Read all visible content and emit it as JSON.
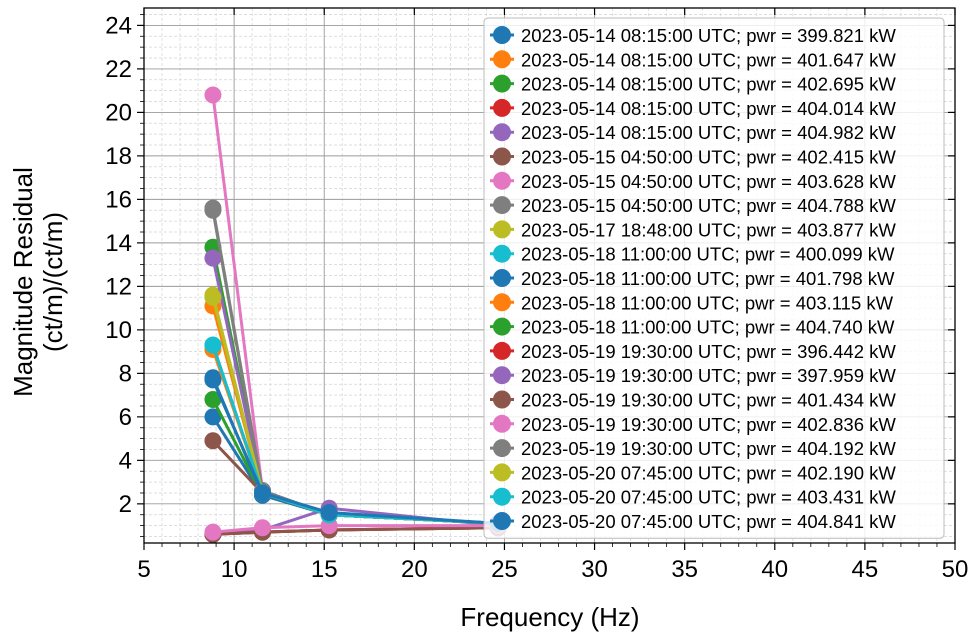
{
  "chart_data": {
    "type": "line",
    "title": "",
    "xlabel": "Frequency (Hz)",
    "ylabel_line1": "Magnitude Residual",
    "ylabel_line2": "(ct/m)/(ct/m)",
    "xlim": [
      5,
      50
    ],
    "ylim": [
      0.2,
      24.8
    ],
    "xticks": [
      5,
      10,
      15,
      20,
      25,
      30,
      35,
      40,
      45,
      50
    ],
    "yticks": [
      2,
      4,
      6,
      8,
      10,
      12,
      14,
      16,
      18,
      20,
      22,
      24
    ],
    "grid": true,
    "legend_position": "upper-right",
    "x": [
      8.825,
      11.575,
      15.275,
      24.65
    ],
    "series": [
      {
        "name": "2023-05-14 08:15:00 UTC; pwr = 399.821 kW",
        "color": "#1f77b4",
        "values": [
          6.0,
          2.4,
          1.5,
          1.1
        ]
      },
      {
        "name": "2023-05-14 08:15:00 UTC; pwr = 401.647 kW",
        "color": "#ff7f0e",
        "values": [
          11.1,
          2.5,
          1.5,
          1.1
        ]
      },
      {
        "name": "2023-05-14 08:15:00 UTC; pwr = 402.695 kW",
        "color": "#2ca02c",
        "values": [
          6.8,
          2.4,
          1.5,
          1.1
        ]
      },
      {
        "name": "2023-05-14 08:15:00 UTC; pwr = 404.014 kW",
        "color": "#d62728",
        "values": [
          0.6,
          0.7,
          0.8,
          0.9
        ]
      },
      {
        "name": "2023-05-14 08:15:00 UTC; pwr = 404.982 kW",
        "color": "#9467bd",
        "values": [
          0.6,
          0.8,
          1.8,
          1.0
        ]
      },
      {
        "name": "2023-05-15 04:50:00 UTC; pwr = 402.415 kW",
        "color": "#8c564b",
        "values": [
          4.9,
          2.5,
          1.5,
          1.1
        ]
      },
      {
        "name": "2023-05-15 04:50:00 UTC; pwr = 403.628 kW",
        "color": "#e377c2",
        "values": [
          20.8,
          2.6,
          1.5,
          1.1
        ]
      },
      {
        "name": "2023-05-15 04:50:00 UTC; pwr = 404.788 kW",
        "color": "#7f7f7f",
        "values": [
          15.5,
          2.6,
          1.5,
          1.1
        ]
      },
      {
        "name": "2023-05-17 18:48:00 UTC; pwr = 403.877 kW",
        "color": "#bcbd22",
        "values": [
          11.6,
          2.5,
          1.5,
          1.1
        ]
      },
      {
        "name": "2023-05-18 11:00:00 UTC; pwr = 400.099 kW",
        "color": "#17becf",
        "values": [
          9.3,
          2.5,
          1.5,
          1.1
        ]
      },
      {
        "name": "2023-05-18 11:00:00 UTC; pwr = 401.798 kW",
        "color": "#1f77b4",
        "values": [
          7.8,
          2.4,
          1.5,
          1.1
        ]
      },
      {
        "name": "2023-05-18 11:00:00 UTC; pwr = 403.115 kW",
        "color": "#ff7f0e",
        "values": [
          9.1,
          2.5,
          1.5,
          1.1
        ]
      },
      {
        "name": "2023-05-18 11:00:00 UTC; pwr = 404.740 kW",
        "color": "#2ca02c",
        "values": [
          13.8,
          2.6,
          1.5,
          1.1
        ]
      },
      {
        "name": "2023-05-19 19:30:00 UTC; pwr = 396.442 kW",
        "color": "#d62728",
        "values": [
          0.6,
          0.7,
          0.8,
          0.9
        ]
      },
      {
        "name": "2023-05-19 19:30:00 UTC; pwr = 397.959 kW",
        "color": "#9467bd",
        "values": [
          13.3,
          2.6,
          1.5,
          1.1
        ]
      },
      {
        "name": "2023-05-19 19:30:00 UTC; pwr = 401.434 kW",
        "color": "#8c564b",
        "values": [
          0.6,
          0.7,
          0.8,
          0.9
        ]
      },
      {
        "name": "2023-05-19 19:30:00 UTC; pwr = 402.836 kW",
        "color": "#e377c2",
        "values": [
          0.7,
          0.9,
          1.0,
          1.0
        ]
      },
      {
        "name": "2023-05-19 19:30:00 UTC; pwr = 404.192 kW",
        "color": "#7f7f7f",
        "values": [
          15.6,
          2.6,
          1.5,
          1.1
        ]
      },
      {
        "name": "2023-05-20 07:45:00 UTC; pwr = 402.190 kW",
        "color": "#bcbd22",
        "values": [
          11.5,
          2.5,
          1.5,
          1.1
        ]
      },
      {
        "name": "2023-05-20 07:45:00 UTC; pwr = 403.431 kW",
        "color": "#17becf",
        "values": [
          9.3,
          2.5,
          1.5,
          1.1
        ]
      },
      {
        "name": "2023-05-20 07:45:00 UTC; pwr = 404.841 kW",
        "color": "#1f77b4",
        "values": [
          7.7,
          2.5,
          1.6,
          1.1
        ]
      }
    ]
  }
}
